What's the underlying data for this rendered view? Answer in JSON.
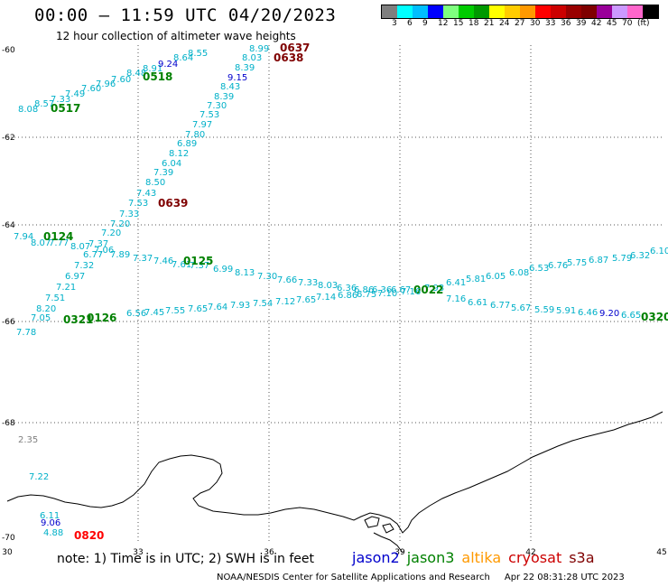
{
  "header": {
    "title": "00:00 – 11:59 UTC 04/20/2023",
    "subtitle": "12 hour collection of altimeter wave heights"
  },
  "colorbar": {
    "colors": [
      "#7f7f7f",
      "#00ffff",
      "#00bfff",
      "#0000ff",
      "#7fff7f",
      "#00cc00",
      "#009900",
      "#ffff00",
      "#ffcc00",
      "#ff9900",
      "#ff0000",
      "#cc0000",
      "#990000",
      "#7f0000",
      "#990099",
      "#cc99ff",
      "#ff66cc",
      "#000000"
    ],
    "ticks": [
      "3",
      "6",
      "9",
      "12",
      "15",
      "18",
      "21",
      "24",
      "27",
      "30",
      "33",
      "36",
      "39",
      "42",
      "45",
      "70",
      "(ft)"
    ]
  },
  "axes": {
    "lat_labels": [
      "-60",
      "-62",
      "-64",
      "-66",
      "-68",
      "-70"
    ],
    "lon_labels": [
      "30",
      "33",
      "36",
      "39",
      "42",
      "45"
    ]
  },
  "map_colors": {
    "jason3_swh": "#00b0b0",
    "jason3_time": "#008000",
    "cryosat_swh": "#1e90d0",
    "cryosat_time": "#7f0000",
    "s3a_swh": "#00cccc",
    "s3a_time": "#ff0000",
    "coast": "#000000",
    "grid": "#555555"
  },
  "tracks": [
    {
      "id": "track-upper-left",
      "labels": [
        {
          "t": "8.08",
          "c": "#00b0c8"
        },
        {
          "t": "8.57",
          "c": "#00b0c8"
        },
        {
          "t": "7.33",
          "c": "#00b0c8"
        },
        {
          "t": "7.49",
          "c": "#00b0c8"
        },
        {
          "t": "7.60",
          "c": "#00b0c8"
        },
        {
          "t": "7.96",
          "c": "#00b0c8"
        },
        {
          "t": "7.60",
          "c": "#00b0c8"
        },
        {
          "t": "8.48",
          "c": "#00b0c8"
        },
        {
          "t": "8.91",
          "c": "#00b0c8"
        },
        {
          "t": "9.24",
          "c": "#0000cc"
        },
        {
          "t": "8.64",
          "c": "#00b0c8"
        },
        {
          "t": "8.55",
          "c": "#00b0c8"
        },
        {
          "t": "0517",
          "c": "#008000",
          "time": true
        },
        {
          "t": "0518",
          "c": "#008000",
          "time": true
        }
      ]
    },
    {
      "id": "track-diagonal",
      "labels": [
        {
          "t": "8.99",
          "c": "#00b0c8"
        },
        {
          "t": "8.03",
          "c": "#00b0c8"
        },
        {
          "t": "8.39",
          "c": "#00b0c8"
        },
        {
          "t": "9.15",
          "c": "#0000cc"
        },
        {
          "t": "8.43",
          "c": "#00b0c8"
        },
        {
          "t": "8.39",
          "c": "#00b0c8"
        },
        {
          "t": "7.30",
          "c": "#00b0c8"
        },
        {
          "t": "7.53",
          "c": "#00b0c8"
        },
        {
          "t": "7.97",
          "c": "#00b0c8"
        },
        {
          "t": "7.80",
          "c": "#00b0c8"
        },
        {
          "t": "6.89",
          "c": "#00b0c8"
        },
        {
          "t": "8.12",
          "c": "#00b0c8"
        },
        {
          "t": "6.04",
          "c": "#00b0c8"
        },
        {
          "t": "7.39",
          "c": "#00b0c8"
        },
        {
          "t": "8.50",
          "c": "#00b0c8"
        },
        {
          "t": "7.43",
          "c": "#00b0c8"
        },
        {
          "t": "7.53",
          "c": "#00b0c8"
        },
        {
          "t": "7.33",
          "c": "#00b0c8"
        },
        {
          "t": "7.20",
          "c": "#00b0c8"
        },
        {
          "t": "0637",
          "c": "#7f0000",
          "time": true
        },
        {
          "t": "0638",
          "c": "#7f0000",
          "time": true
        },
        {
          "t": "0639",
          "c": "#7f0000",
          "time": true
        }
      ]
    },
    {
      "id": "track-middle",
      "labels": [
        {
          "t": "7.94",
          "c": "#00b0c8"
        },
        {
          "t": "8.07",
          "c": "#00b0c8"
        },
        {
          "t": "7.77",
          "c": "#00b0c8"
        },
        {
          "t": "8.07",
          "c": "#00b0c8"
        },
        {
          "t": "7.37",
          "c": "#00b0c8"
        },
        {
          "t": "7.20",
          "c": "#00b0c8"
        },
        {
          "t": "7.06",
          "c": "#00b0c8"
        },
        {
          "t": "6.77",
          "c": "#00b0c8"
        },
        {
          "t": "7.89",
          "c": "#00b0c8"
        },
        {
          "t": "7.37",
          "c": "#00b0c8"
        },
        {
          "t": "7.46",
          "c": "#00b0c8"
        },
        {
          "t": "7.61",
          "c": "#00b0c8"
        },
        {
          "t": "7.37",
          "c": "#00b0c8"
        },
        {
          "t": "6.99",
          "c": "#00b0c8"
        },
        {
          "t": "8.13",
          "c": "#00b0c8"
        },
        {
          "t": "7.30",
          "c": "#00b0c8"
        },
        {
          "t": "7.66",
          "c": "#00b0c8"
        },
        {
          "t": "7.33",
          "c": "#00b0c8"
        },
        {
          "t": "8.03",
          "c": "#00b0c8"
        },
        {
          "t": "6.36",
          "c": "#00b0c8"
        },
        {
          "t": "6.86",
          "c": "#00b0c8"
        },
        {
          "t": "6.36",
          "c": "#00b0c8"
        },
        {
          "t": "6.67",
          "c": "#00b0c8"
        },
        {
          "t": "7.93",
          "c": "#00b0c8"
        },
        {
          "t": "6.41",
          "c": "#00b0c8"
        },
        {
          "t": "5.81",
          "c": "#00b0c8"
        },
        {
          "t": "6.05",
          "c": "#00b0c8"
        },
        {
          "t": "6.08",
          "c": "#00b0c8"
        },
        {
          "t": "6.53",
          "c": "#00b0c8"
        },
        {
          "t": "6.76",
          "c": "#00b0c8"
        },
        {
          "t": "5.75",
          "c": "#00b0c8"
        },
        {
          "t": "6.87",
          "c": "#00b0c8"
        },
        {
          "t": "5.79",
          "c": "#00b0c8"
        },
        {
          "t": "6.32",
          "c": "#00b0c8"
        },
        {
          "t": "6.10",
          "c": "#00b0c8"
        },
        {
          "t": "0124",
          "c": "#008000",
          "time": true
        },
        {
          "t": "0125",
          "c": "#008000",
          "time": true
        },
        {
          "t": "0022",
          "c": "#008000",
          "time": true
        }
      ]
    },
    {
      "id": "track-lower",
      "labels": [
        {
          "t": "7.32",
          "c": "#00b0c8"
        },
        {
          "t": "6.97",
          "c": "#00b0c8"
        },
        {
          "t": "7.21",
          "c": "#00b0c8"
        },
        {
          "t": "7.51",
          "c": "#00b0c8"
        },
        {
          "t": "8.20",
          "c": "#00b0c8"
        },
        {
          "t": "7.78",
          "c": "#00b0c8"
        },
        {
          "t": "7.05",
          "c": "#00b0c8"
        },
        {
          "t": "6.56",
          "c": "#00b0c8"
        },
        {
          "t": "7.45",
          "c": "#00b0c8"
        },
        {
          "t": "7.55",
          "c": "#00b0c8"
        },
        {
          "t": "7.65",
          "c": "#00b0c8"
        },
        {
          "t": "7.64",
          "c": "#00b0c8"
        },
        {
          "t": "7.93",
          "c": "#00b0c8"
        },
        {
          "t": "7.54",
          "c": "#00b0c8"
        },
        {
          "t": "7.12",
          "c": "#00b0c8"
        },
        {
          "t": "7.65",
          "c": "#00b0c8"
        },
        {
          "t": "7.14",
          "c": "#00b0c8"
        },
        {
          "t": "6.86",
          "c": "#00b0c8"
        },
        {
          "t": "6.75",
          "c": "#00b0c8"
        },
        {
          "t": "7.10",
          "c": "#00b0c8"
        },
        {
          "t": "7.16",
          "c": "#00b0c8"
        },
        {
          "t": "7.16",
          "c": "#00b0c8"
        },
        {
          "t": "6.61",
          "c": "#00b0c8"
        },
        {
          "t": "6.77",
          "c": "#00b0c8"
        },
        {
          "t": "5.67",
          "c": "#00b0c8"
        },
        {
          "t": "5.59",
          "c": "#00b0c8"
        },
        {
          "t": "5.91",
          "c": "#00b0c8"
        },
        {
          "t": "6.46",
          "c": "#00b0c8"
        },
        {
          "t": "9.20",
          "c": "#0000cc"
        },
        {
          "t": "6.65",
          "c": "#00b0c8"
        },
        {
          "t": "0320",
          "c": "#008000",
          "time": true
        },
        {
          "t": "0321",
          "c": "#008000",
          "time": true
        },
        {
          "t": "0126",
          "c": "#008000",
          "time": true
        }
      ]
    },
    {
      "id": "track-south",
      "labels": [
        {
          "t": "2.35",
          "c": "#808080"
        },
        {
          "t": "7.22",
          "c": "#00b0c8"
        },
        {
          "t": "6.11",
          "c": "#00b0c8"
        },
        {
          "t": "9.06",
          "c": "#0000cc"
        },
        {
          "t": "4.88",
          "c": "#00b0c8"
        },
        {
          "t": "0820",
          "c": "#ff0000",
          "time": true
        }
      ]
    }
  ],
  "note": "note:  1) Time is in UTC;  2) SWH is in feet",
  "satellites": [
    {
      "name": "jason2",
      "color": "#0000cc"
    },
    {
      "name": "jason3",
      "color": "#008000"
    },
    {
      "name": "altika",
      "color": "#ff9900"
    },
    {
      "name": "cryosat",
      "color": "#cc0000"
    },
    {
      "name": "s3a",
      "color": "#7f0000"
    }
  ],
  "footer": {
    "credit": "NOAA/NESDIS Center for Satellite Applications and Research",
    "timestamp": "Apr 22 08:31:28 UTC 2023"
  }
}
